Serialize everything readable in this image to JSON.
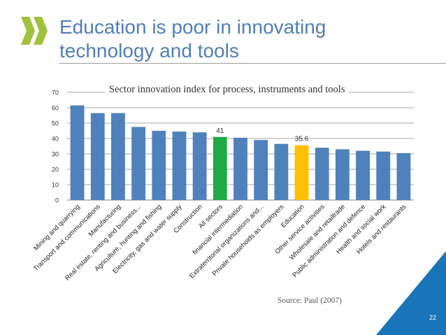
{
  "slide": {
    "title_line1": "Education is poor in innovating",
    "title_line2": "technology and tools",
    "source": "Source: Paul (2007)",
    "page_number": "22"
  },
  "colors": {
    "title": "#4f7fb8",
    "bar_default": "#4f81bd",
    "bar_all_sectors": "#1faa47",
    "bar_education": "#ffc000",
    "logo": "#9ec23b",
    "corner": "#1a74b8"
  },
  "chart_data": {
    "type": "bar",
    "title": "Sector innovation index for process, instruments and tools",
    "xlabel": "",
    "ylabel": "",
    "ylim": [
      0,
      70
    ],
    "yticks": [
      0,
      10,
      20,
      30,
      40,
      50,
      60,
      70
    ],
    "grid": true,
    "categories": [
      "Mining and quarrying",
      "Transport and communications",
      "Manufacturing",
      "Real estate, renting and business...",
      "Agriculture, hunting and fishing",
      "Electricity, gas and water supply",
      "Construction",
      "All sectors",
      "financial intermediation",
      "Extraterritorial organizations and...",
      "Private households as employers",
      "Education",
      "Other service activities",
      "Wholesale and retailtrade",
      "Public administration and defence",
      "Health and social work",
      "Hotels and restaurants"
    ],
    "values": [
      61.5,
      56.5,
      56.5,
      47.5,
      45,
      44.5,
      44,
      41,
      40.5,
      39,
      36.5,
      35.6,
      34,
      33,
      32,
      31.5,
      30.5
    ],
    "highlight": {
      "7": "all_sectors",
      "11": "education"
    },
    "data_labels": [
      {
        "index": 7,
        "text": "41"
      },
      {
        "index": 11,
        "text": "35.6"
      }
    ]
  }
}
